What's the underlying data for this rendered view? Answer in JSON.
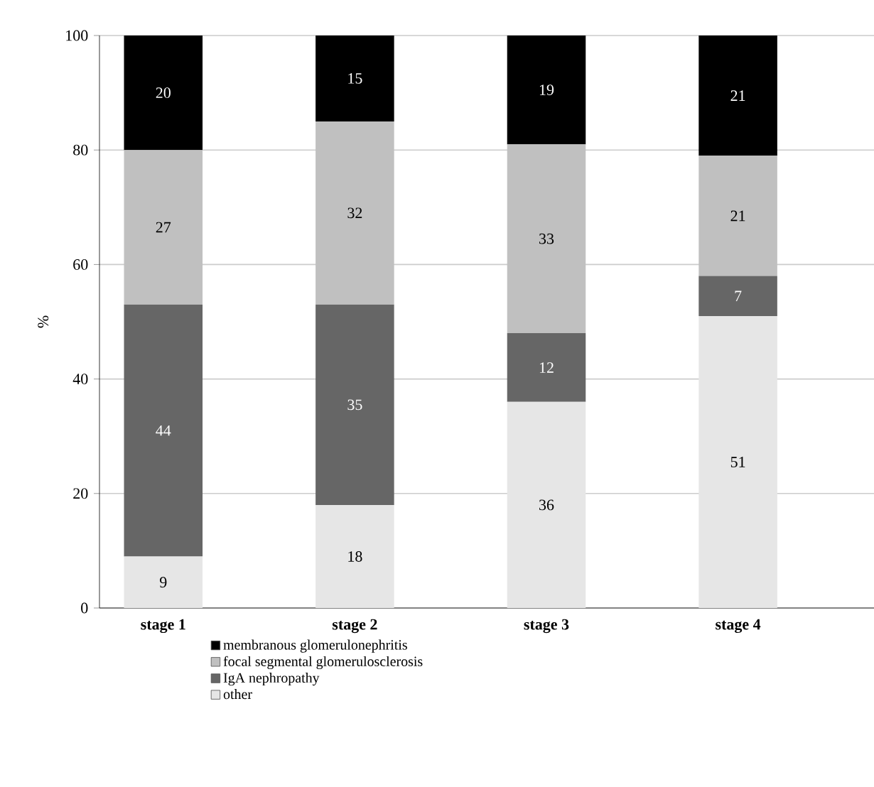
{
  "chart_data": {
    "type": "bar",
    "stacked": true,
    "categories": [
      "stage 1",
      "stage 2",
      "stage 3",
      "stage 4"
    ],
    "ylabel": "%",
    "series": [
      {
        "name": "other",
        "color": "#e6e6e6",
        "values": [
          9,
          18,
          36,
          51
        ]
      },
      {
        "name": "IgA nephropathy",
        "color": "#666666",
        "values": [
          44,
          35,
          12,
          7
        ]
      },
      {
        "name": "focal segmental glomerulosclerosis",
        "color": "#c0c0c0",
        "values": [
          27,
          32,
          33,
          21
        ]
      },
      {
        "name": "membranous glomerulonephritis",
        "color": "#000000",
        "values": [
          20,
          15,
          19,
          21
        ]
      }
    ],
    "ylim": [
      0,
      100
    ],
    "yticks": [
      0,
      20,
      40,
      60,
      80,
      100
    ],
    "grid": "y",
    "legend": "bottom",
    "data_labels": true
  }
}
